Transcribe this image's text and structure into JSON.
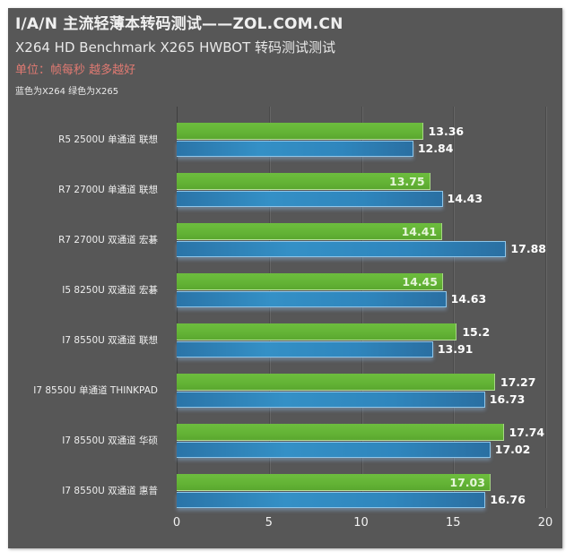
{
  "header": {
    "title": "I/A/N 主流轻薄本转码测试——ZOL.COM.CN",
    "subtitle": "X264  HD Benchmark X265  HWBOT 转码测试测试",
    "unit_note": "单位：帧每秒 越多越好",
    "legend_note": "蓝色为X264 绿色为X265"
  },
  "colors": {
    "background": "#575757",
    "x265_green": "#63b335",
    "x264_blue": "#3490c6",
    "unit_text": "#e07a72",
    "text": "#f0f0f0"
  },
  "axis": {
    "ticks": [
      "0",
      "5",
      "10",
      "15",
      "20"
    ]
  },
  "chart_data": {
    "type": "bar",
    "orientation": "horizontal",
    "title": "I/A/N 主流轻薄本转码测试——ZOL.COM.CN",
    "subtitle": "X264  HD Benchmark X265  HWBOT 转码测试测试",
    "annotations": [
      "单位：帧每秒 越多越好",
      "蓝色为X264 绿色为X265"
    ],
    "xlabel": "",
    "ylabel": "",
    "xlim": [
      0,
      20
    ],
    "xticks": [
      0,
      5,
      10,
      15,
      20
    ],
    "grid": true,
    "categories": [
      "R5 2500U 单通道 联想",
      "R7 2700U 单通道 联想",
      "R7 2700U 双通道 宏碁",
      "I5 8250U 双通道 宏碁",
      "I7 8550U 双通道 联想",
      "I7 8550U 单通道 THINKPAD",
      "I7 8550U 双通道 华硕",
      "I7 8550U 双通道 惠普"
    ],
    "series": [
      {
        "name": "X265",
        "color": "#63b335",
        "values": [
          13.36,
          13.75,
          14.41,
          14.45,
          15.2,
          17.27,
          17.74,
          17.03
        ]
      },
      {
        "name": "X264",
        "color": "#3490c6",
        "values": [
          12.84,
          14.43,
          17.88,
          14.63,
          13.91,
          16.73,
          17.02,
          16.76
        ]
      }
    ],
    "value_labels": {
      "X265": [
        "13.36",
        "13.75",
        "14.41",
        "14.45",
        "15.2",
        "17.27",
        "17.74",
        "17.03"
      ],
      "X264": [
        "12.84",
        "14.43",
        "17.88",
        "14.63",
        "13.91",
        "16.73",
        "17.02",
        "16.76"
      ]
    }
  }
}
